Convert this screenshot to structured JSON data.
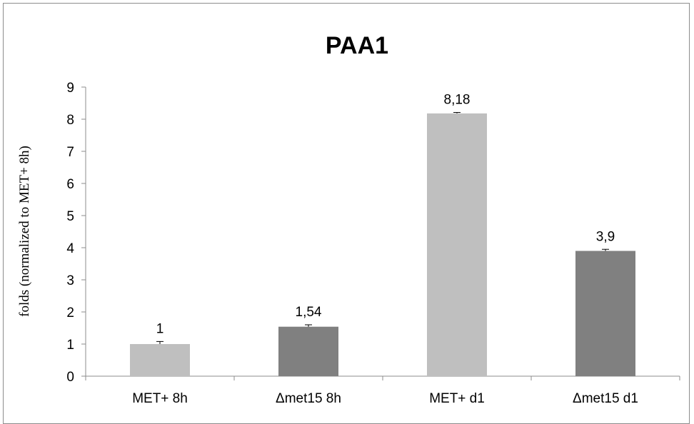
{
  "chart_data": {
    "type": "bar",
    "title": "PAA1",
    "ylabel": "folds (normalized to MET+ 8h)",
    "xlabel": "",
    "categories": [
      "MET+ 8h",
      "Δmet15 8h",
      "MET+ d1",
      "Δmet15 d1"
    ],
    "values": [
      1,
      1.54,
      8.18,
      3.9
    ],
    "value_labels": [
      "1",
      "1,54",
      "8,18",
      "3,9"
    ],
    "error": [
      0.08,
      0.06,
      0.03,
      0.05
    ],
    "bar_colors": [
      "#bfbfbf",
      "#808080",
      "#bfbfbf",
      "#808080"
    ],
    "ylim": [
      0,
      9
    ],
    "yticks": [
      0,
      1,
      2,
      3,
      4,
      5,
      6,
      7,
      8,
      9
    ],
    "grid": false,
    "legend": "none"
  }
}
